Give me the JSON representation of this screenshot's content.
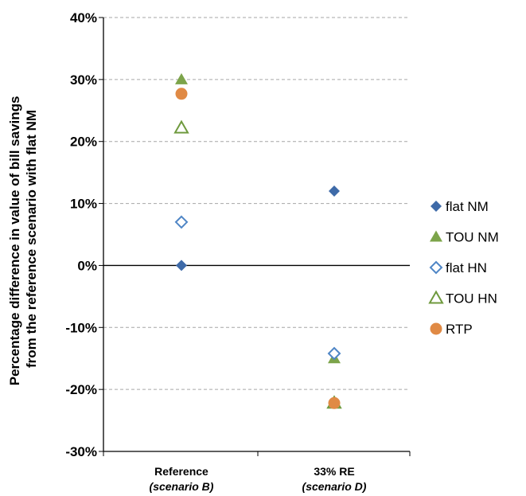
{
  "chart_data": {
    "type": "scatter",
    "title": "",
    "ylabel": [
      "Percentage difference in value of bill savings",
      "from the reference scenario with flat NM"
    ],
    "xlabel": "",
    "categories": [
      {
        "main": "Reference",
        "sub": "(scenario B)"
      },
      {
        "main": "33% RE",
        "sub": "(scenario D)"
      }
    ],
    "ylim": [
      -30,
      40
    ],
    "yticks": [
      -30,
      -20,
      -10,
      0,
      10,
      20,
      30,
      40
    ],
    "ytick_labels": [
      "-30%",
      "-20%",
      "-10%",
      "0%",
      "10%",
      "20%",
      "30%",
      "40%"
    ],
    "grid": "horizontal dashed",
    "legend_position": "right",
    "series": [
      {
        "name": "flat NM",
        "marker": "diamond-filled",
        "color": "#3e6aa8",
        "values": [
          0,
          12
        ]
      },
      {
        "name": "TOU NM",
        "marker": "triangle-filled",
        "color": "#7ca44a",
        "values": [
          30,
          -15
        ]
      },
      {
        "name": "flat HN",
        "marker": "diamond-open",
        "color": "#4f86c6",
        "values": [
          7,
          -14.2
        ]
      },
      {
        "name": "TOU HN",
        "marker": "triangle-open",
        "color": "#6f9a3e",
        "values": [
          22.2,
          -22.2
        ]
      },
      {
        "name": "RTP",
        "marker": "circle-filled",
        "color": "#e08a45",
        "values": [
          27.7,
          -22.2
        ]
      }
    ]
  }
}
